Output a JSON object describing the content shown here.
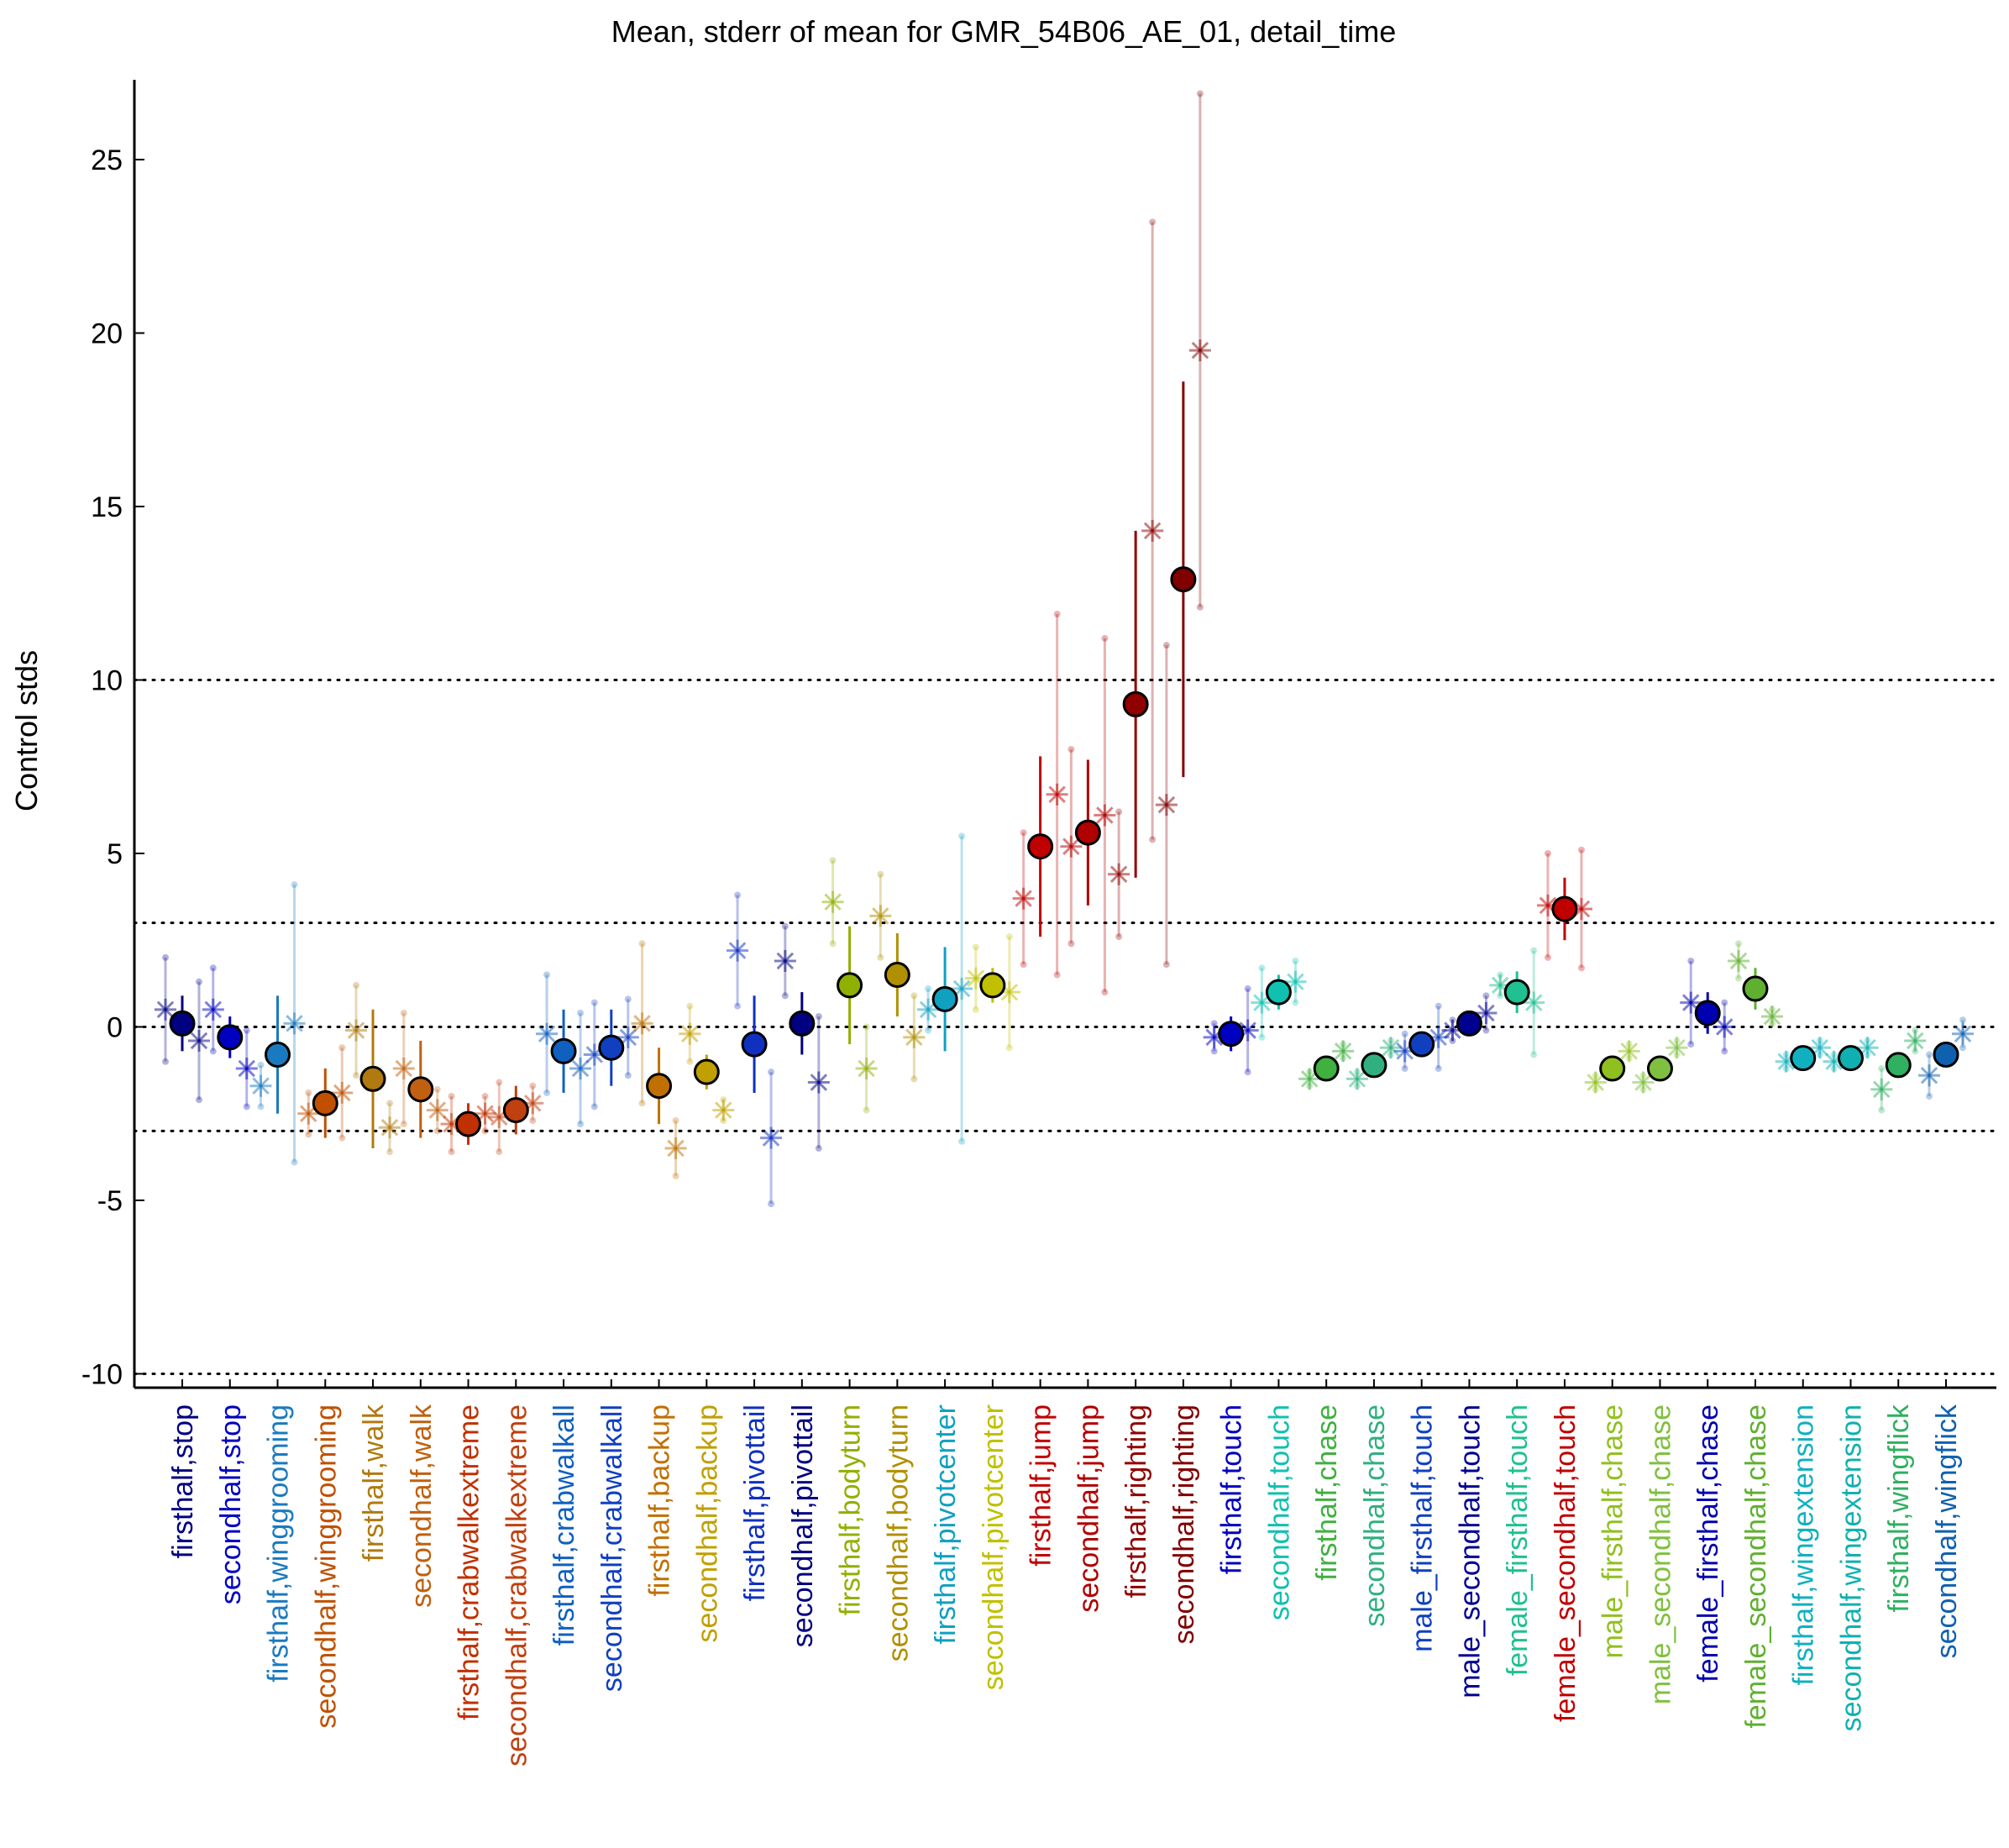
{
  "chart_data": {
    "type": "errorbar",
    "title": "Mean, stderr of mean for GMR_54B06_AE_01, detail_time",
    "y_label": "Control stds",
    "ylim": [
      -10.4,
      27.3
    ],
    "yticks": [
      -10,
      -5,
      0,
      5,
      10,
      15,
      20,
      25
    ],
    "reference_lines": [
      -10,
      -3,
      0,
      3,
      10
    ],
    "categories": [
      "firsthalf,stop",
      "secondhalf,stop",
      "firsthalf,winggrooming",
      "secondhalf,winggrooming",
      "firsthalf,walk",
      "secondhalf,walk",
      "firsthalf,crabwalkextreme",
      "secondhalf,crabwalkextreme",
      "firsthalf,crabwalkall",
      "secondhalf,crabwalkall",
      "firsthalf,backup",
      "secondhalf,backup",
      "firsthalf,pivottail",
      "secondhalf,pivottail",
      "firsthalf,bodyturn",
      "secondhalf,bodyturn",
      "firsthalf,pivotcenter",
      "secondhalf,pivotcenter",
      "firsthalf,jump",
      "secondhalf,jump",
      "firsthalf,righting",
      "secondhalf,righting",
      "firsthalf,touch",
      "secondhalf,touch",
      "firsthalf,chase",
      "secondhalf,chase",
      "male_firsthalf,touch",
      "male_secondhalf,touch",
      "female_firsthalf,touch",
      "female_secondhalf,touch",
      "male_firsthalf,chase",
      "male_secondhalf,chase",
      "female_firsthalf,chase",
      "female_secondhalf,chase",
      "firsthalf,wingextension",
      "secondhalf,wingextension",
      "firsthalf,wingflick",
      "secondhalf,wingflick"
    ],
    "colors": [
      "#000080",
      "#0000c0",
      "#1a7ac0",
      "#c05000",
      "#b07a10",
      "#c06010",
      "#c03000",
      "#c04010",
      "#1060c0",
      "#1040c0",
      "#c07000",
      "#c0a000",
      "#1030c0",
      "#000080",
      "#90b000",
      "#b09000",
      "#10a0c0",
      "#c0c000",
      "#c00000",
      "#b00000",
      "#900000",
      "#800000",
      "#0000c0",
      "#10c0b0",
      "#40b040",
      "#30b080",
      "#1040c0",
      "#000090",
      "#20c090",
      "#c00000",
      "#90c020",
      "#80c040",
      "#0000b0",
      "#60b030",
      "#10b0c0",
      "#10b0b0",
      "#30b060",
      "#1060b0"
    ],
    "means": [
      0.1,
      -0.3,
      -0.8,
      -2.2,
      -1.5,
      -1.8,
      -2.8,
      -2.4,
      -0.7,
      -0.6,
      -1.7,
      -1.3,
      -0.5,
      0.1,
      1.2,
      1.5,
      0.8,
      1.2,
      5.2,
      5.6,
      9.3,
      12.9,
      -0.2,
      1.0,
      -1.2,
      -1.1,
      -0.5,
      0.1,
      1.0,
      3.4,
      -1.2,
      -1.2,
      0.4,
      1.1,
      -0.9,
      -0.9,
      -1.1,
      -0.8
    ],
    "errors": [
      0.8,
      0.6,
      1.7,
      1.0,
      2.0,
      1.4,
      0.6,
      0.7,
      1.2,
      1.1,
      1.1,
      0.5,
      1.4,
      0.9,
      1.7,
      1.2,
      1.5,
      0.5,
      2.6,
      2.1,
      5.0,
      5.7,
      0.5,
      0.5,
      0.2,
      0.2,
      0.3,
      0.3,
      0.6,
      0.9,
      0.2,
      0.2,
      0.6,
      0.6,
      0.2,
      0.2,
      0.2,
      0.2
    ],
    "left_values": [
      0.5,
      0.5,
      -1.7,
      -2.5,
      -0.1,
      -1.2,
      -2.8,
      -2.6,
      -0.2,
      -0.8,
      0.1,
      -0.2,
      2.2,
      1.9,
      3.6,
      3.2,
      0.5,
      1.4,
      3.7,
      5.2,
      4.4,
      6.4,
      -0.3,
      0.7,
      -1.5,
      -1.5,
      -0.7,
      -0.1,
      1.2,
      3.5,
      -1.6,
      -1.6,
      0.7,
      1.9,
      -1.0,
      -1.0,
      -1.8,
      -1.4
    ],
    "left_errors": [
      1.5,
      1.2,
      0.6,
      0.6,
      1.3,
      1.6,
      0.8,
      1.0,
      1.7,
      1.5,
      2.3,
      0.8,
      1.6,
      1.0,
      1.2,
      1.2,
      0.6,
      0.9,
      1.9,
      2.8,
      1.8,
      4.6,
      0.4,
      1.0,
      0.2,
      0.2,
      0.5,
      0.3,
      0.3,
      1.5,
      0.2,
      0.2,
      1.2,
      0.5,
      0.2,
      0.2,
      0.6,
      0.6
    ],
    "right_values": [
      -0.4,
      -1.2,
      0.1,
      -1.9,
      -2.9,
      -2.4,
      -2.5,
      -2.2,
      -1.2,
      -0.3,
      -3.5,
      -2.4,
      -3.2,
      -1.6,
      -1.2,
      -0.3,
      1.1,
      1.0,
      6.7,
      6.1,
      14.3,
      19.5,
      -0.1,
      1.3,
      -0.7,
      -0.6,
      -0.3,
      0.4,
      0.7,
      3.4,
      -0.7,
      -0.6,
      0.0,
      0.3,
      -0.6,
      -0.6,
      -0.4,
      -0.2
    ],
    "right_errors": [
      1.7,
      1.1,
      4.0,
      1.3,
      0.7,
      0.6,
      0.5,
      0.5,
      1.6,
      1.1,
      0.8,
      0.3,
      1.9,
      1.9,
      1.2,
      1.2,
      4.4,
      1.6,
      5.2,
      5.1,
      8.9,
      7.4,
      1.2,
      0.6,
      0.2,
      0.2,
      0.9,
      0.5,
      1.5,
      1.7,
      0.2,
      0.2,
      0.7,
      0.2,
      0.2,
      0.2,
      0.3,
      0.4
    ]
  }
}
